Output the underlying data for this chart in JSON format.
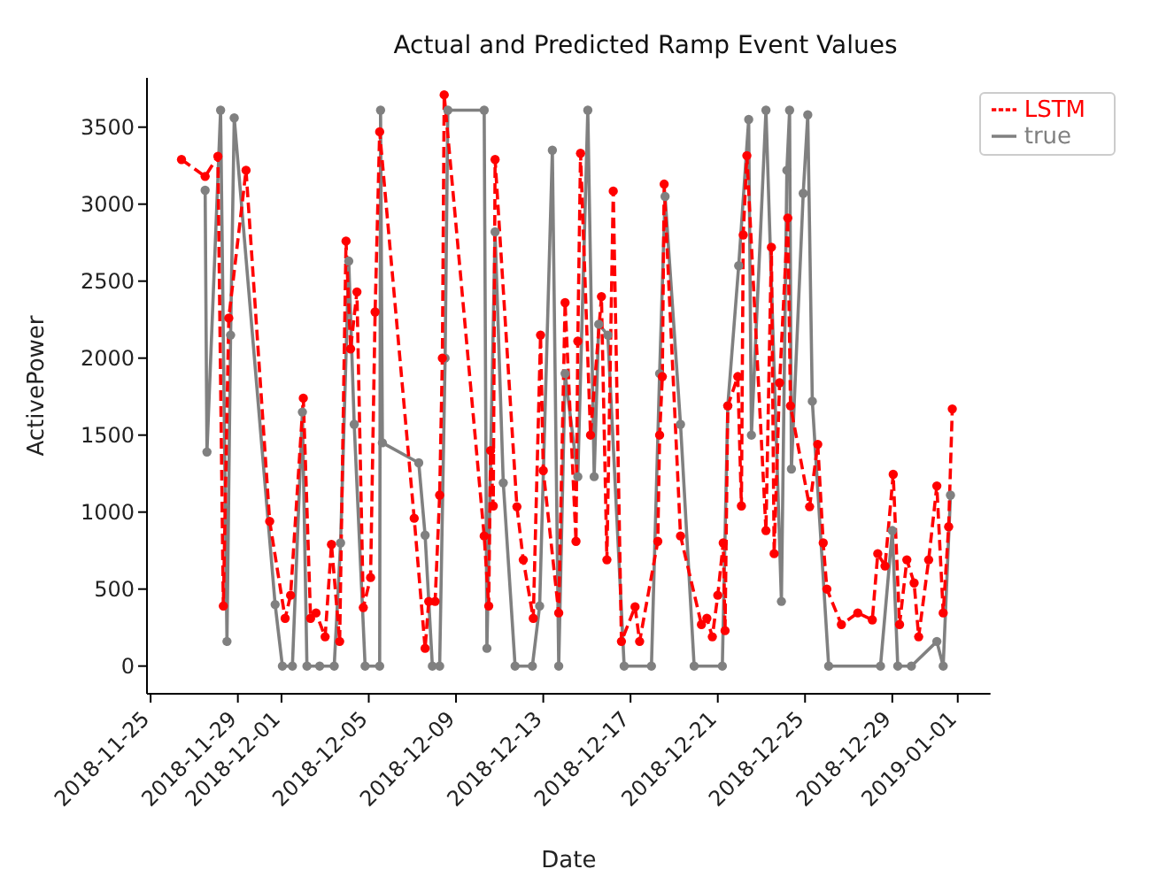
{
  "chart_data": {
    "type": "line",
    "title": "Actual and Predicted Ramp Event Values",
    "xlabel": "Date",
    "ylabel": "ActivePower",
    "xlim": [
      "2018-11-24T20:00",
      "2019-01-02T12:00"
    ],
    "xticks": [
      "2018-11-25",
      "2018-11-29",
      "2018-12-01",
      "2018-12-05",
      "2018-12-09",
      "2018-12-13",
      "2018-12-17",
      "2018-12-21",
      "2018-12-25",
      "2018-12-29",
      "2019-01-01"
    ],
    "ylim": [
      -180,
      3820
    ],
    "yticks": [
      0,
      500,
      1000,
      1500,
      2000,
      2500,
      3000,
      3500
    ],
    "grid": false,
    "legend": "top right",
    "marker": "circle",
    "series": [
      {
        "name": "true",
        "color": "#808080",
        "line_style": "solid",
        "x": [
          "2018-11-27T12:00",
          "2018-11-27T14:00",
          "2018-11-28T05:00",
          "2018-11-28T12:00",
          "2018-11-28T16:00",
          "2018-11-28T20:00",
          "2018-11-30T17:00",
          "2018-12-01T01:00",
          "2018-12-01T12:00",
          "2018-12-01T23:00",
          "2018-12-02T04:00",
          "2018-12-02T18:00",
          "2018-12-03T10:00",
          "2018-12-03T17:00",
          "2018-12-04T02:00",
          "2018-12-04T08:00",
          "2018-12-04T20:00",
          "2018-12-05T12:00",
          "2018-12-05T13:00",
          "2018-12-05T15:00",
          "2018-12-07T07:00",
          "2018-12-07T14:00",
          "2018-12-07T22:00",
          "2018-12-08T06:00",
          "2018-12-08T12:00",
          "2018-12-08T15:00",
          "2018-12-10T07:00",
          "2018-12-10T10:00",
          "2018-12-10T19:00",
          "2018-12-11T04:00",
          "2018-12-11T17:00",
          "2018-12-12T12:00",
          "2018-12-12T20:00",
          "2018-12-13T10:00",
          "2018-12-13T17:00",
          "2018-12-14T00:00",
          "2018-12-14T14:00",
          "2018-12-15T01:00",
          "2018-12-15T08:00",
          "2018-12-15T13:00",
          "2018-12-15T23:00",
          "2018-12-16T17:00",
          "2018-12-17T23:00",
          "2018-12-18T08:00",
          "2018-12-18T14:00",
          "2018-12-19T07:00",
          "2018-12-19T22:00",
          "2018-12-21T05:00",
          "2018-12-21T11:00",
          "2018-12-21T23:00",
          "2018-12-22T10:00",
          "2018-12-22T13:00",
          "2018-12-23T05:00",
          "2018-12-23T22:00",
          "2018-12-24T04:00",
          "2018-12-24T07:00",
          "2018-12-24T09:00",
          "2018-12-24T22:00",
          "2018-12-25T03:00",
          "2018-12-25T08:00",
          "2018-12-26T02:00",
          "2018-12-28T11:00",
          "2018-12-29T00:00",
          "2018-12-29T06:00",
          "2018-12-29T21:00",
          "2018-12-31T01:00",
          "2018-12-31T08:00",
          "2018-12-31T16:00"
        ],
        "values": [
          3090,
          1390,
          3610,
          160,
          2150,
          3560,
          400,
          0,
          0,
          1650,
          0,
          0,
          0,
          800,
          2630,
          1570,
          0,
          0,
          3610,
          1450,
          1320,
          850,
          0,
          0,
          2000,
          3610,
          3610,
          115,
          2820,
          1190,
          0,
          0,
          390,
          3350,
          0,
          1900,
          1230,
          3610,
          1230,
          2220,
          2150,
          0,
          0,
          1900,
          3050,
          1570,
          0,
          0,
          1690,
          2600,
          3550,
          1500,
          3610,
          420,
          3220,
          3610,
          1280,
          3070,
          3580,
          1720,
          0,
          0,
          880,
          0,
          0,
          160,
          0,
          1110
        ]
      },
      {
        "name": "LSTM",
        "color": "#ff0000",
        "line_style": "dashed",
        "x": [
          "2018-11-26T10:00",
          "2018-11-27T12:00",
          "2018-11-28T02:00",
          "2018-11-28T08:00",
          "2018-11-28T14:00",
          "2018-11-29T09:00",
          "2018-11-30T11:00",
          "2018-12-01T04:00",
          "2018-12-01T10:00",
          "2018-12-02T00:00",
          "2018-12-02T08:00",
          "2018-12-02T14:00",
          "2018-12-03T00:00",
          "2018-12-03T07:00",
          "2018-12-03T16:00",
          "2018-12-03T23:00",
          "2018-12-04T04:00",
          "2018-12-04T11:00",
          "2018-12-04T18:00",
          "2018-12-05T02:00",
          "2018-12-05T07:00",
          "2018-12-05T12:00",
          "2018-12-07T02:00",
          "2018-12-07T14:00",
          "2018-12-07T18:00",
          "2018-12-08T01:00",
          "2018-12-08T06:00",
          "2018-12-08T09:00",
          "2018-12-08T11:00",
          "2018-12-10T07:00",
          "2018-12-10T12:00",
          "2018-12-10T14:00",
          "2018-12-10T17:00",
          "2018-12-10T19:00",
          "2018-12-11T19:00",
          "2018-12-12T02:00",
          "2018-12-12T13:00",
          "2018-12-12T21:00",
          "2018-12-13T00:00",
          "2018-12-13T17:00",
          "2018-12-14T00:00",
          "2018-12-14T12:00",
          "2018-12-14T14:00",
          "2018-12-14T17:00",
          "2018-12-15T04:00",
          "2018-12-15T16:00",
          "2018-12-15T22:00",
          "2018-12-16T05:00",
          "2018-12-16T14:00",
          "2018-12-17T05:00",
          "2018-12-17T10:00",
          "2018-12-18T06:00",
          "2018-12-18T08:00",
          "2018-12-18T11:00",
          "2018-12-18T13:00",
          "2018-12-19T07:00",
          "2018-12-20T06:00",
          "2018-12-20T12:00",
          "2018-12-20T18:00",
          "2018-12-21T00:00",
          "2018-12-21T06:00",
          "2018-12-21T08:00",
          "2018-12-21T11:00",
          "2018-12-21T22:00",
          "2018-12-22T02:00",
          "2018-12-22T04:00",
          "2018-12-22T08:00",
          "2018-12-23T05:00",
          "2018-12-23T11:00",
          "2018-12-23T14:00",
          "2018-12-23T20:00",
          "2018-12-24T05:00",
          "2018-12-24T08:00",
          "2018-12-25T05:00",
          "2018-12-25T14:00",
          "2018-12-25T20:00",
          "2018-12-26T00:00",
          "2018-12-26T16:00",
          "2018-12-27T10:00",
          "2018-12-28T02:00",
          "2018-12-28T08:00",
          "2018-12-28T16:00",
          "2018-12-29T01:00",
          "2018-12-29T08:00",
          "2018-12-29T16:00",
          "2018-12-30T00:00",
          "2018-12-30T05:00",
          "2018-12-30T16:00",
          "2018-12-31T01:00",
          "2018-12-31T08:00",
          "2018-12-31T14:00",
          "2018-12-31T18:00"
        ],
        "values": [
          3290,
          3180,
          3310,
          390,
          2260,
          3220,
          940,
          310,
          460,
          1740,
          310,
          345,
          190,
          790,
          160,
          2760,
          2060,
          2430,
          380,
          575,
          2300,
          3470,
          960,
          115,
          420,
          420,
          1110,
          2000,
          3710,
          845,
          390,
          1400,
          1040,
          3290,
          1035,
          690,
          310,
          2150,
          1270,
          345,
          2360,
          810,
          2110,
          3330,
          1500,
          2400,
          690,
          3085,
          160,
          385,
          160,
          810,
          1500,
          1880,
          3130,
          845,
          270,
          310,
          190,
          460,
          800,
          230,
          1690,
          1880,
          1040,
          2800,
          3315,
          880,
          2720,
          730,
          1840,
          2910,
          1690,
          1035,
          1440,
          800,
          500,
          270,
          345,
          300,
          730,
          650,
          1245,
          270,
          690,
          540,
          190,
          690,
          1170,
          345,
          905,
          1670
        ]
      }
    ]
  }
}
